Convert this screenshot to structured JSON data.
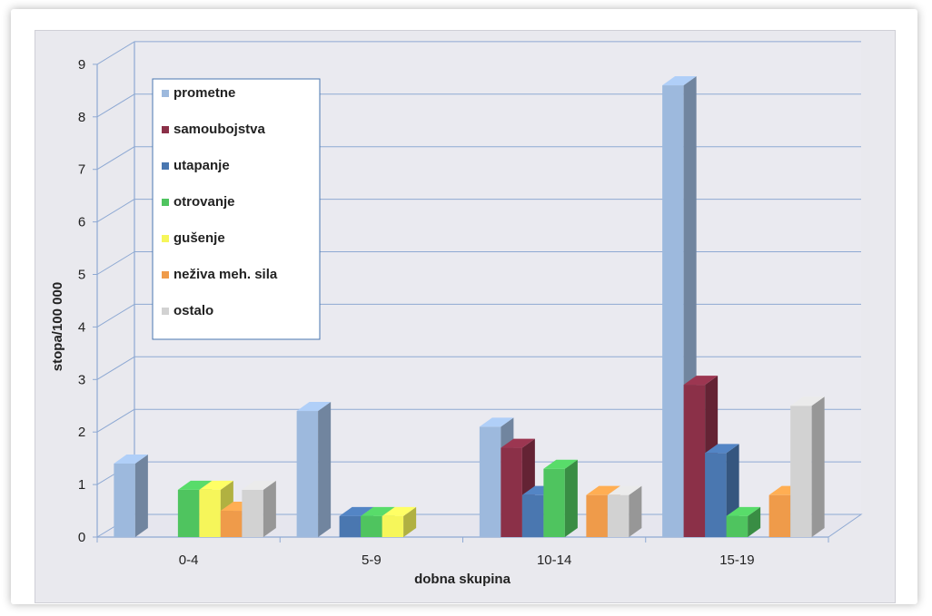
{
  "chart_data": {
    "type": "bar",
    "title": "",
    "xlabel": "dobna skupina",
    "ylabel": "stopa/100 000",
    "ylim": [
      0,
      9
    ],
    "yticks": [
      0,
      1,
      2,
      3,
      4,
      5,
      6,
      7,
      8,
      9
    ],
    "categories": [
      "0-4",
      "5-9",
      "10-14",
      "15-19"
    ],
    "grid": true,
    "legend_position": "top-left",
    "series": [
      {
        "name": "prometne",
        "color": "#9db9dd",
        "values": [
          1.4,
          2.4,
          2.1,
          8.6
        ]
      },
      {
        "name": "samoubojstva",
        "color": "#8b3048",
        "values": [
          0,
          0,
          1.7,
          2.9
        ]
      },
      {
        "name": "utapanje",
        "color": "#4a77b0",
        "values": [
          0,
          0.4,
          0.8,
          1.6
        ]
      },
      {
        "name": "otrovanje",
        "color": "#4fc45f",
        "values": [
          0.9,
          0.4,
          1.3,
          0.4
        ]
      },
      {
        "name": "gušenje",
        "color": "#f6f65a",
        "values": [
          0.9,
          0.4,
          0,
          0
        ]
      },
      {
        "name": "neživa meh. sila",
        "color": "#ef9b4a",
        "values": [
          0.5,
          0,
          0.8,
          0.8
        ]
      },
      {
        "name": "ostalo",
        "color": "#d2d2d2",
        "values": [
          0.9,
          0,
          0.8,
          2.5
        ]
      }
    ]
  }
}
